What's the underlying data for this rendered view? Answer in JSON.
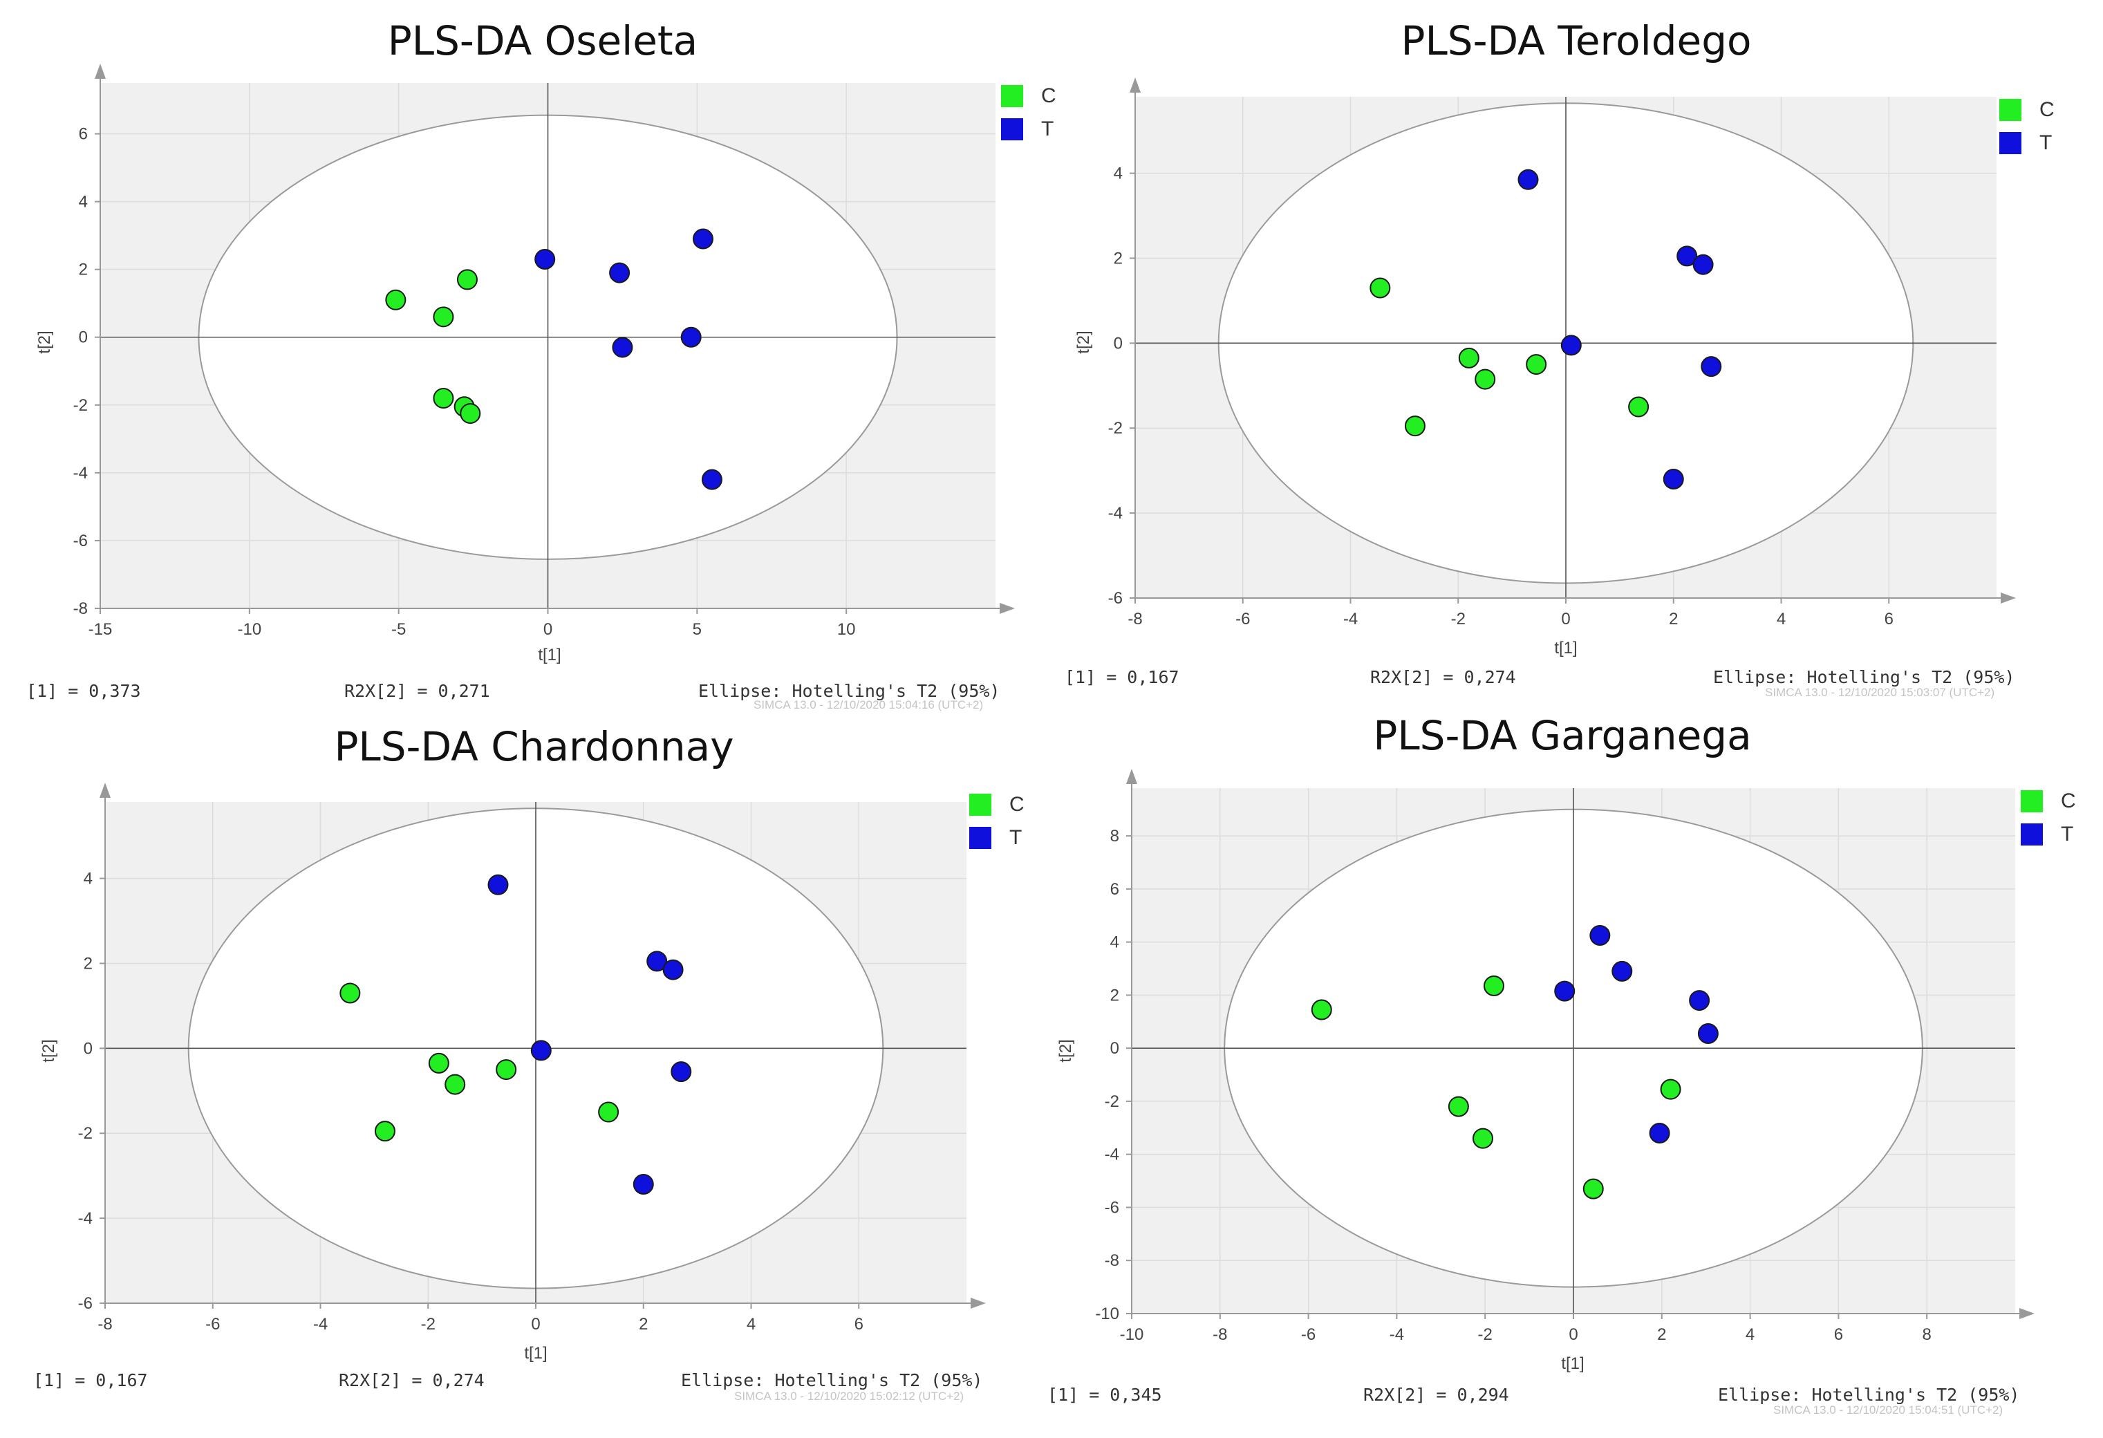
{
  "colors": {
    "C": "#22ee22",
    "T": "#1010dd",
    "bg": "#f0f0f0",
    "ellipse_fill": "#ffffff"
  },
  "chart_data": [
    {
      "type": "scatter",
      "title": "PLS-DA Oseleta",
      "xlabel": "t[1]",
      "ylabel": "t[2]",
      "xlim": [
        -15,
        15
      ],
      "ylim": [
        -8,
        7.5
      ],
      "xticks": [
        -15,
        -10,
        -5,
        0,
        5,
        10
      ],
      "yticks": [
        -8,
        -6,
        -4,
        -2,
        0,
        2,
        4,
        6
      ],
      "ellipse": {
        "rx": 11.7,
        "ry": 6.55,
        "label": "Ellipse: Hotelling's T2 (95%)"
      },
      "legend": [
        "C",
        "T"
      ],
      "stats": {
        "r2x1": "[1] = 0,373",
        "r2x2": "R2X[2] = 0,271",
        "stamp": "SIMCA 13.0 - 12/10/2020 15:04:16 (UTC+2)"
      },
      "series": [
        {
          "name": "C",
          "points": [
            [
              -5.1,
              1.1
            ],
            [
              -3.5,
              0.6
            ],
            [
              -2.7,
              1.7
            ],
            [
              -3.5,
              -1.8
            ],
            [
              -2.8,
              -2.05
            ],
            [
              -2.6,
              -2.25
            ]
          ]
        },
        {
          "name": "T",
          "points": [
            [
              -0.1,
              2.3
            ],
            [
              2.4,
              1.9
            ],
            [
              5.2,
              2.9
            ],
            [
              2.5,
              -0.3
            ],
            [
              4.8,
              0.0
            ],
            [
              5.5,
              -4.2
            ]
          ]
        }
      ]
    },
    {
      "type": "scatter",
      "title": "PLS-DA Teroldego",
      "xlabel": "t[1]",
      "ylabel": "t[2]",
      "xlim": [
        -8,
        8
      ],
      "ylim": [
        -6,
        5.8
      ],
      "xticks": [
        -8,
        -6,
        -4,
        -2,
        0,
        2,
        4,
        6
      ],
      "yticks": [
        -6,
        -4,
        -2,
        0,
        2,
        4
      ],
      "ellipse": {
        "rx": 6.45,
        "ry": 5.65,
        "label": "Ellipse: Hotelling's T2 (95%)"
      },
      "legend": [
        "C",
        "T"
      ],
      "stats": {
        "r2x1": "[1] = 0,167",
        "r2x2": "R2X[2] = 0,274",
        "stamp": "SIMCA 13.0 - 12/10/2020 15:03:07 (UTC+2)"
      },
      "series": [
        {
          "name": "C",
          "points": [
            [
              -3.45,
              1.3
            ],
            [
              -1.8,
              -0.35
            ],
            [
              -1.5,
              -0.85
            ],
            [
              -0.55,
              -0.5
            ],
            [
              -2.8,
              -1.95
            ],
            [
              1.35,
              -1.5
            ]
          ]
        },
        {
          "name": "T",
          "points": [
            [
              -0.7,
              3.85
            ],
            [
              2.25,
              2.05
            ],
            [
              2.55,
              1.85
            ],
            [
              0.1,
              -0.05
            ],
            [
              2.7,
              -0.55
            ],
            [
              2.0,
              -3.2
            ]
          ]
        }
      ]
    },
    {
      "type": "scatter",
      "title": "PLS-DA Chardonnay",
      "xlabel": "t[1]",
      "ylabel": "t[2]",
      "xlim": [
        -8,
        8
      ],
      "ylim": [
        -6,
        5.8
      ],
      "xticks": [
        -8,
        -6,
        -4,
        -2,
        0,
        2,
        4,
        6
      ],
      "yticks": [
        -6,
        -4,
        -2,
        0,
        2,
        4
      ],
      "ellipse": {
        "rx": 6.45,
        "ry": 5.65,
        "label": "Ellipse: Hotelling's T2 (95%)"
      },
      "legend": [
        "C",
        "T"
      ],
      "stats": {
        "r2x1": "[1] = 0,167",
        "r2x2": "R2X[2] = 0,274",
        "stamp": "SIMCA 13.0 - 12/10/2020 15:02:12 (UTC+2)"
      },
      "series": [
        {
          "name": "C",
          "points": [
            [
              -3.45,
              1.3
            ],
            [
              -1.8,
              -0.35
            ],
            [
              -1.5,
              -0.85
            ],
            [
              -0.55,
              -0.5
            ],
            [
              -2.8,
              -1.95
            ],
            [
              1.35,
              -1.5
            ]
          ]
        },
        {
          "name": "T",
          "points": [
            [
              -0.7,
              3.85
            ],
            [
              2.25,
              2.05
            ],
            [
              2.55,
              1.85
            ],
            [
              0.1,
              -0.05
            ],
            [
              2.7,
              -0.55
            ],
            [
              2.0,
              -3.2
            ]
          ]
        }
      ]
    },
    {
      "type": "scatter",
      "title": "PLS-DA Garganega",
      "xlabel": "t[1]",
      "ylabel": "t[2]",
      "xlim": [
        -10,
        10
      ],
      "ylim": [
        -10,
        9.8
      ],
      "xticks": [
        -10,
        -8,
        -6,
        -4,
        -2,
        0,
        2,
        4,
        6,
        8
      ],
      "yticks": [
        -10,
        -8,
        -6,
        -4,
        -2,
        0,
        2,
        4,
        6,
        8
      ],
      "ellipse": {
        "rx": 7.9,
        "ry": 9.0,
        "label": "Ellipse: Hotelling's T2 (95%)"
      },
      "legend": [
        "C",
        "T"
      ],
      "stats": {
        "r2x1": "[1] = 0,345",
        "r2x2": "R2X[2] = 0,294",
        "stamp": "SIMCA 13.0 - 12/10/2020 15:04:51 (UTC+2)"
      },
      "series": [
        {
          "name": "C",
          "points": [
            [
              -5.7,
              1.45
            ],
            [
              -1.8,
              2.35
            ],
            [
              -2.6,
              -2.2
            ],
            [
              -2.05,
              -3.4
            ],
            [
              2.2,
              -1.55
            ],
            [
              0.45,
              -5.3
            ]
          ]
        },
        {
          "name": "T",
          "points": [
            [
              -0.2,
              2.15
            ],
            [
              0.6,
              4.25
            ],
            [
              1.1,
              2.9
            ],
            [
              2.85,
              1.8
            ],
            [
              3.05,
              0.55
            ],
            [
              1.95,
              -3.2
            ]
          ]
        }
      ]
    }
  ]
}
